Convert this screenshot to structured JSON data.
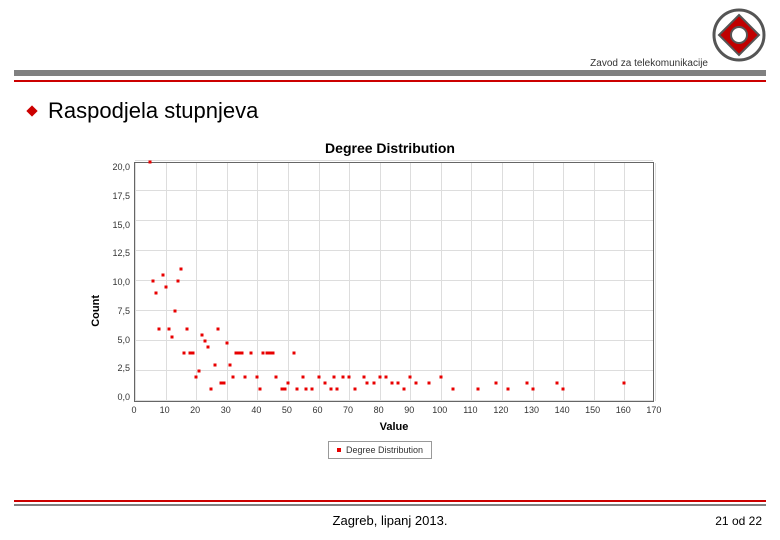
{
  "header": {
    "department": "Zavod za telekomunikacije",
    "logo": {
      "outer_stroke": "#555555",
      "diamond_fill": "#c00000",
      "diamond_stroke": "#555555",
      "center_fill": "#ffffff"
    }
  },
  "bullet": {
    "text": "Raspodjela stupnjeva",
    "diamond_color": "#cc0000"
  },
  "rules": {
    "gray": "#808080",
    "red": "#cc0000"
  },
  "chart": {
    "type": "scatter",
    "title": "Degree Distribution",
    "title_fontsize": 14,
    "xlabel": "Value",
    "ylabel": "Count",
    "label_fontsize": 11,
    "xlim": [
      0,
      170
    ],
    "ylim": [
      0,
      20
    ],
    "xtick_step": 10,
    "ytick_step": 2.5,
    "xticks": [
      0,
      10,
      20,
      30,
      40,
      50,
      60,
      70,
      80,
      90,
      100,
      110,
      120,
      130,
      140,
      150,
      160,
      170
    ],
    "yticks_labels": [
      "20,0",
      "17,5",
      "15,0",
      "12,5",
      "10,0",
      "7,5",
      "5,0",
      "2,5",
      "0,0"
    ],
    "yticks_values": [
      20,
      17.5,
      15,
      12.5,
      10,
      7.5,
      5,
      2.5,
      0
    ],
    "background_color": "#ffffff",
    "grid_color": "#dddddd",
    "border_color": "#666666",
    "marker_color": "#e80000",
    "marker_size": 3,
    "tick_fontsize": 9,
    "legend": {
      "label": "Degree Distribution",
      "border_color": "#999999"
    },
    "points": [
      [
        5,
        21
      ],
      [
        6,
        10
      ],
      [
        7,
        9
      ],
      [
        8,
        6
      ],
      [
        9,
        10.5
      ],
      [
        10,
        9.5
      ],
      [
        11,
        6
      ],
      [
        12,
        5.3
      ],
      [
        13,
        7.5
      ],
      [
        14,
        10
      ],
      [
        15,
        11
      ],
      [
        16,
        4
      ],
      [
        17,
        6
      ],
      [
        18,
        4
      ],
      [
        19,
        4
      ],
      [
        20,
        2
      ],
      [
        21,
        2.5
      ],
      [
        22,
        5.5
      ],
      [
        23,
        5
      ],
      [
        24,
        4.5
      ],
      [
        25,
        1
      ],
      [
        26,
        3
      ],
      [
        27,
        6
      ],
      [
        28,
        1.5
      ],
      [
        29,
        1.5
      ],
      [
        30,
        4.8
      ],
      [
        31,
        3
      ],
      [
        32,
        2
      ],
      [
        33,
        4
      ],
      [
        34,
        4
      ],
      [
        35,
        4
      ],
      [
        36,
        2
      ],
      [
        38,
        4
      ],
      [
        40,
        2
      ],
      [
        41,
        1
      ],
      [
        42,
        4
      ],
      [
        43,
        4
      ],
      [
        44,
        4
      ],
      [
        45,
        4
      ],
      [
        46,
        2
      ],
      [
        48,
        1
      ],
      [
        49,
        1
      ],
      [
        50,
        1.5
      ],
      [
        52,
        4
      ],
      [
        53,
        1
      ],
      [
        55,
        2
      ],
      [
        56,
        1
      ],
      [
        58,
        1
      ],
      [
        60,
        2
      ],
      [
        62,
        1.5
      ],
      [
        64,
        1
      ],
      [
        65,
        2
      ],
      [
        66,
        1
      ],
      [
        68,
        2
      ],
      [
        70,
        2
      ],
      [
        72,
        1
      ],
      [
        75,
        2
      ],
      [
        76,
        1.5
      ],
      [
        78,
        1.5
      ],
      [
        80,
        2
      ],
      [
        82,
        2
      ],
      [
        84,
        1.5
      ],
      [
        86,
        1.5
      ],
      [
        88,
        1
      ],
      [
        90,
        2
      ],
      [
        92,
        1.5
      ],
      [
        96,
        1.5
      ],
      [
        100,
        2
      ],
      [
        104,
        1
      ],
      [
        112,
        1
      ],
      [
        118,
        1.5
      ],
      [
        122,
        1
      ],
      [
        128,
        1.5
      ],
      [
        130,
        1
      ],
      [
        138,
        1.5
      ],
      [
        140,
        1
      ],
      [
        160,
        1.5
      ]
    ]
  },
  "footer": {
    "center": "Zagreb, lipanj 2013.",
    "page_current": 21,
    "page_sep": "od",
    "page_total": 22
  }
}
